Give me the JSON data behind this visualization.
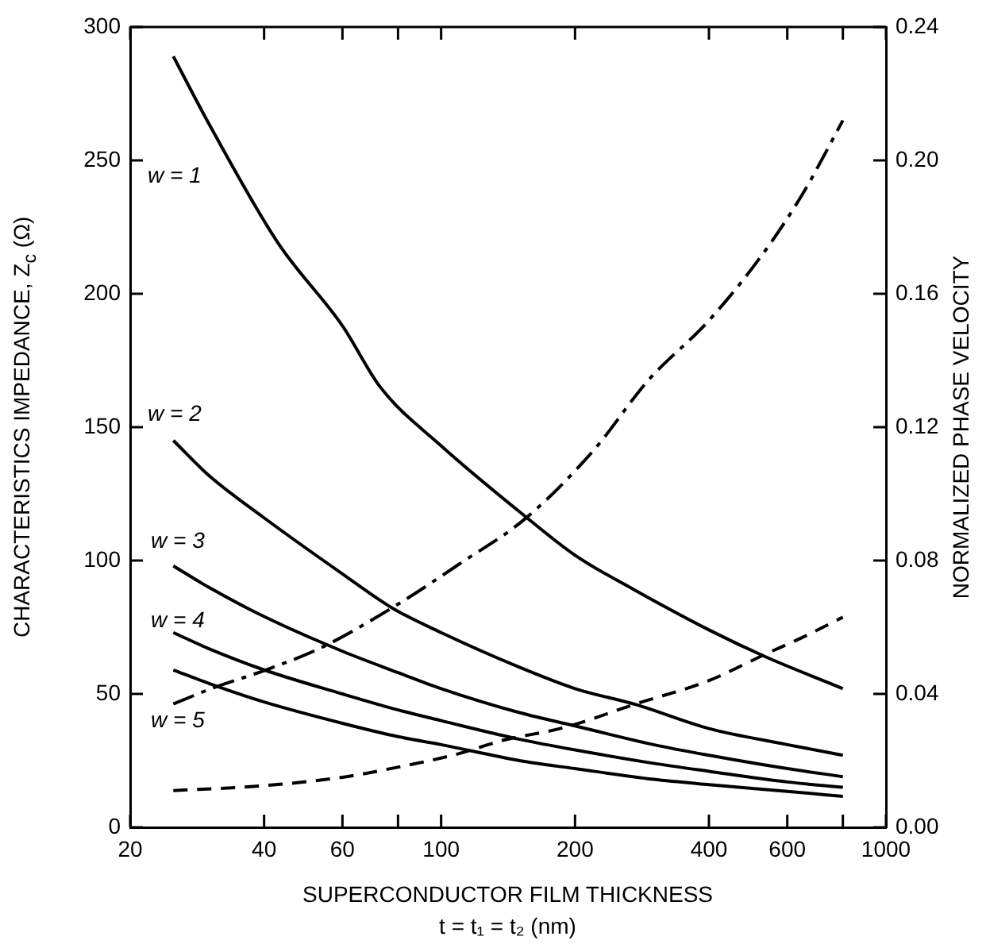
{
  "chart_data": {
    "type": "line",
    "xlabel": "SUPERCONDUCTOR FILM THICKNESS\nt = t₁ = t₂ (nm)",
    "ylabel": "CHARACTERISTICS IMPEDANCE, Z$_{c}$ (Ω)",
    "y2label": "NORMALIZED PHASE VELOCITY",
    "log": "x",
    "grid": false,
    "legend": false,
    "marker": "none",
    "xlim": [
      20,
      1000
    ],
    "xticks": [
      20,
      40,
      60,
      {
        "value": 80,
        "label": null
      },
      100,
      200,
      400,
      600,
      {
        "value": 800,
        "label": null
      },
      1000
    ],
    "ylim": [
      0,
      300
    ],
    "yticks": [
      0,
      50,
      100,
      150,
      200,
      250,
      300
    ],
    "y2lim": [
      0,
      0.24
    ],
    "y2ticks": [
      {
        "value": 0,
        "label": "0.00"
      },
      0.04,
      0.08,
      0.12,
      0.16,
      {
        "value": 0.2,
        "label": "0.20"
      },
      0.24
    ],
    "series": [
      {
        "color": "#000000",
        "line_style": "solid",
        "x": [
          25,
          30,
          43,
          60,
          73,
          100,
          156,
          200,
          272,
          400,
          535,
          800
        ],
        "values": [
          289,
          264,
          219,
          188,
          165,
          143,
          116,
          102,
          89,
          74,
          64,
          52
        ]
      },
      {
        "color": "#000000",
        "line_style": "solid",
        "x": [
          25,
          30,
          40,
          60,
          78,
          100,
          150,
          200,
          274,
          400,
          600,
          800
        ],
        "values": [
          145,
          132,
          116,
          95,
          82,
          73,
          60,
          52,
          46,
          37,
          31,
          27
        ]
      },
      {
        "color": "#000000",
        "line_style": "solid",
        "x": [
          25,
          30,
          40,
          60,
          80,
          100,
          150,
          200,
          300,
          400,
          600,
          800
        ],
        "values": [
          98,
          90,
          79,
          66,
          58,
          52,
          43,
          38,
          31,
          27,
          22,
          19
        ]
      },
      {
        "color": "#000000",
        "line_style": "solid",
        "x": [
          25,
          30,
          40,
          60,
          80,
          100,
          150,
          200,
          300,
          400,
          600,
          800
        ],
        "values": [
          73,
          67,
          59,
          50,
          44,
          40,
          33,
          29,
          24,
          21,
          17,
          15
        ]
      },
      {
        "color": "#000000",
        "line_style": "solid",
        "x": [
          25,
          30,
          40,
          60,
          80,
          100,
          150,
          200,
          300,
          400,
          600,
          800
        ],
        "values": [
          59,
          54,
          47,
          39,
          34,
          31,
          25,
          22,
          18,
          16,
          13.5,
          11.6
        ]
      },
      {
        "color": "#000000",
        "line_style": "dashdot",
        "axis": "y2",
        "x": [
          25,
          31,
          40,
          54,
          78,
          110,
          156,
          220,
          292,
          400,
          529,
          650,
          800
        ],
        "values": [
          0.037,
          0.042,
          0.047,
          0.054,
          0.066,
          0.079,
          0.093,
          0.113,
          0.134,
          0.152,
          0.172,
          0.19,
          0.212
        ]
      },
      {
        "color": "#000000",
        "line_style": "dashed",
        "axis": "y2",
        "x": [
          25,
          40,
          60,
          73,
          109,
          137,
          190,
          274,
          400,
          537,
          650,
          800
        ],
        "values": [
          0.011,
          0.0125,
          0.015,
          0.017,
          0.022,
          0.026,
          0.03,
          0.037,
          0.044,
          0.052,
          0.057,
          0.063
        ]
      }
    ],
    "annotations": [
      "w = 1",
      "w = 2",
      "w = 3",
      "w = 4",
      "w = 5"
    ]
  }
}
